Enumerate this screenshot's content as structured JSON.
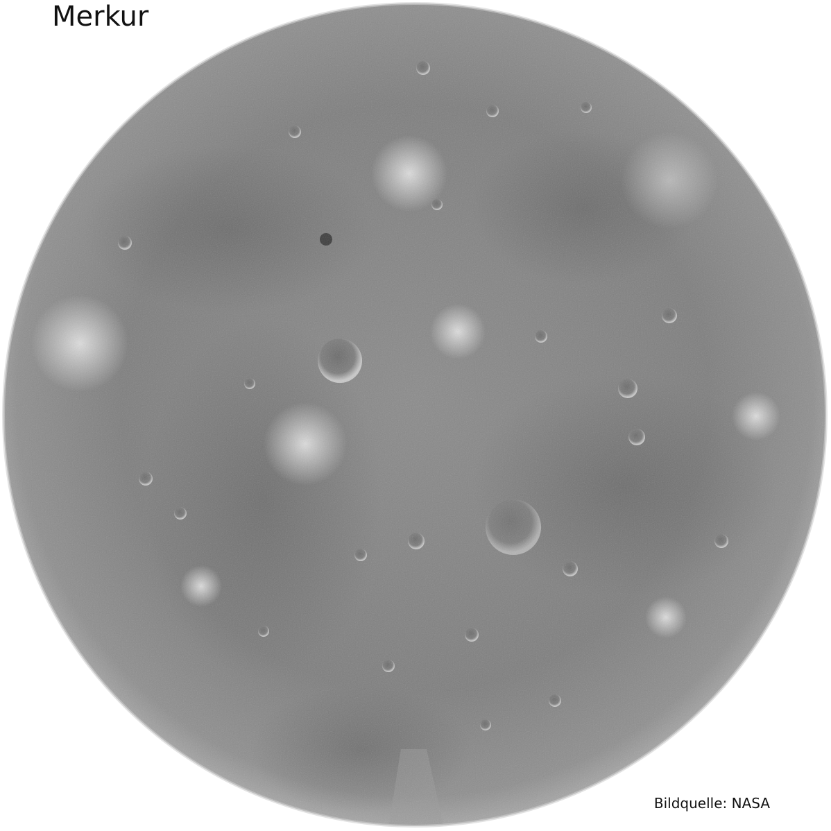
{
  "title": "Merkur",
  "credit": "Bildquelle: NASA",
  "planet": {
    "name_icon": "mercury-globe",
    "base_color": "#7a7a7a",
    "limb_color": "#bdbdbd"
  }
}
